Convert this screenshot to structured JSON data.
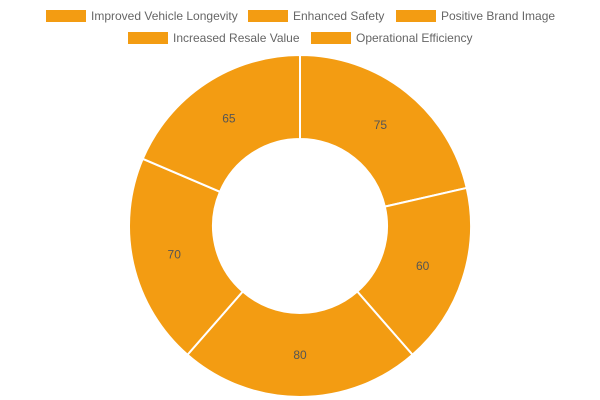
{
  "chart_data": {
    "type": "pie",
    "variant": "doughnut",
    "categories": [
      "Improved Vehicle Longevity",
      "Enhanced Safety",
      "Positive Brand Image",
      "Increased Resale Value",
      "Operational Efficiency"
    ],
    "values": [
      75,
      60,
      80,
      70,
      65
    ],
    "slice_color": "#F39C12",
    "border_color": "#ffffff",
    "legend": {
      "position": "top",
      "items": [
        "Improved Vehicle Longevity",
        "Enhanced Safety",
        "Positive Brand Image",
        "Increased Resale Value",
        "Operational Efficiency"
      ]
    },
    "data_labels": [
      "75",
      "60",
      "80",
      "70",
      "65"
    ]
  }
}
